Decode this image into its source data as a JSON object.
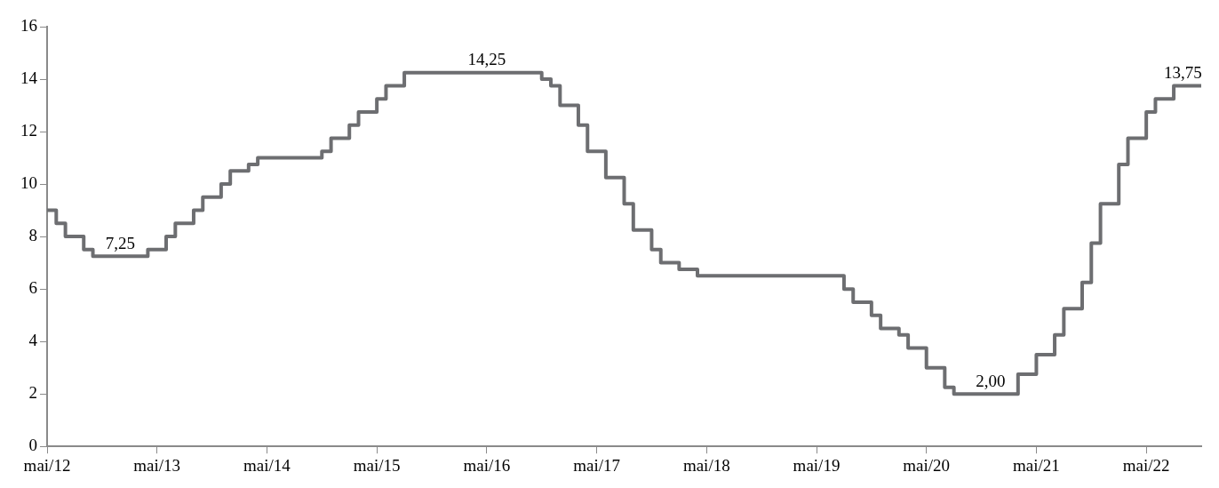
{
  "chart_data": {
    "type": "step",
    "x": [
      "2012-05",
      "2012-06",
      "2012-07",
      "2012-09",
      "2012-10",
      "2013-04",
      "2013-06",
      "2013-07",
      "2013-09",
      "2013-10",
      "2013-12",
      "2014-01",
      "2014-03",
      "2014-04",
      "2014-11",
      "2014-12",
      "2015-02",
      "2015-03",
      "2015-05",
      "2015-06",
      "2015-08",
      "2016-11",
      "2016-12",
      "2017-01",
      "2017-03",
      "2017-04",
      "2017-06",
      "2017-08",
      "2017-09",
      "2017-11",
      "2017-12",
      "2018-02",
      "2018-04",
      "2019-08",
      "2019-09",
      "2019-11",
      "2019-12",
      "2020-02",
      "2020-03",
      "2020-05",
      "2020-07",
      "2020-08",
      "2021-03",
      "2021-05",
      "2021-07",
      "2021-08",
      "2021-10",
      "2021-11",
      "2021-12",
      "2022-02",
      "2022-03",
      "2022-05",
      "2022-06",
      "2022-08",
      "2022-11"
    ],
    "series": [
      {
        "color": "#6d6e71",
        "values": [
          9.0,
          8.5,
          8.0,
          7.5,
          7.25,
          7.5,
          8.0,
          8.5,
          9.0,
          9.5,
          10.0,
          10.5,
          10.75,
          11.0,
          11.25,
          11.75,
          12.25,
          12.75,
          13.25,
          13.75,
          14.25,
          14.0,
          13.75,
          13.0,
          12.25,
          11.25,
          10.25,
          9.25,
          8.25,
          7.5,
          7.0,
          6.75,
          6.5,
          6.0,
          5.5,
          5.0,
          4.5,
          4.25,
          3.75,
          3.0,
          2.25,
          2.0,
          2.75,
          3.5,
          4.25,
          5.25,
          6.25,
          7.75,
          9.25,
          10.75,
          11.75,
          12.75,
          13.25,
          13.75,
          13.75
        ]
      }
    ],
    "xlim": [
      "2012-05",
      "2022-11"
    ],
    "xticks": [
      {
        "value": "2012-05",
        "label": "mai/12"
      },
      {
        "value": "2013-05",
        "label": "mai/13"
      },
      {
        "value": "2014-05",
        "label": "mai/14"
      },
      {
        "value": "2015-05",
        "label": "mai/15"
      },
      {
        "value": "2016-05",
        "label": "mai/16"
      },
      {
        "value": "2017-05",
        "label": "mai/17"
      },
      {
        "value": "2018-05",
        "label": "mai/18"
      },
      {
        "value": "2019-05",
        "label": "mai/19"
      },
      {
        "value": "2020-05",
        "label": "mai/20"
      },
      {
        "value": "2021-05",
        "label": "mai/21"
      },
      {
        "value": "2022-05",
        "label": "mai/22"
      }
    ],
    "ylim": [
      0,
      16
    ],
    "yticks": [
      0,
      2,
      4,
      6,
      8,
      10,
      12,
      14,
      16
    ],
    "grid": false,
    "legend": false,
    "marker": "none",
    "line_style": "solid",
    "annotations": [
      {
        "text": "7,25",
        "x": "2013-01",
        "y": 7.25
      },
      {
        "text": "14,25",
        "x": "2016-05",
        "y": 14.25
      },
      {
        "text": "2,00",
        "x": "2020-12",
        "y": 2.0
      },
      {
        "text": "13,75",
        "x": "2022-09",
        "y": 13.75
      }
    ]
  }
}
